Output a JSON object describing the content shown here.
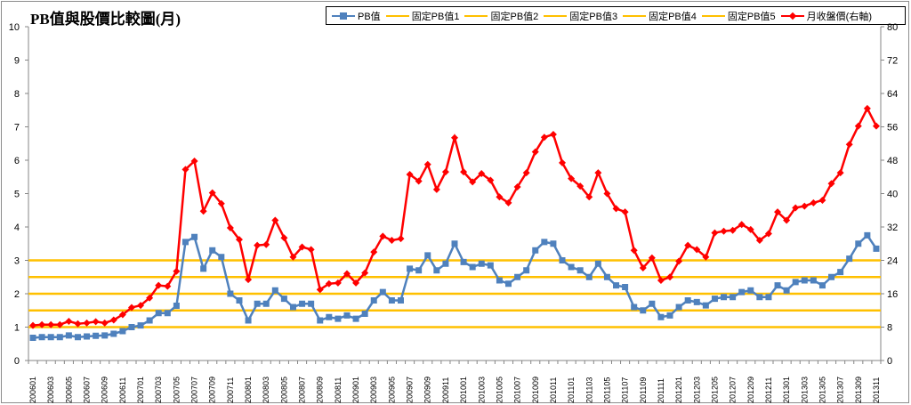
{
  "chart_data": {
    "type": "line",
    "title": "PB值與股價比較圖(月)",
    "categories": [
      "200601",
      "200602",
      "200603",
      "200604",
      "200605",
      "200606",
      "200607",
      "200608",
      "200609",
      "200610",
      "200611",
      "200612",
      "200701",
      "200702",
      "200703",
      "200704",
      "200705",
      "200706",
      "200707",
      "200708",
      "200709",
      "200710",
      "200711",
      "200712",
      "200801",
      "200802",
      "200803",
      "200804",
      "200805",
      "200806",
      "200807",
      "200808",
      "200809",
      "200810",
      "200811",
      "200812",
      "200901",
      "200902",
      "200903",
      "200904",
      "200905",
      "200906",
      "200907",
      "200908",
      "200909",
      "200910",
      "200911",
      "200912",
      "201001",
      "201002",
      "201003",
      "201004",
      "201005",
      "201006",
      "201007",
      "201008",
      "201009",
      "201010",
      "201011",
      "201012",
      "201101",
      "201102",
      "201103",
      "201104",
      "201105",
      "201106",
      "201107",
      "201108",
      "201109",
      "201110",
      "201111",
      "201112",
      "201201",
      "201202",
      "201203",
      "201204",
      "201205",
      "201206",
      "201207",
      "201208",
      "201209",
      "201210",
      "201211",
      "201212",
      "201301",
      "201302",
      "201303",
      "201304",
      "201305",
      "201306",
      "201307",
      "201308",
      "201309",
      "201310",
      "201311"
    ],
    "tick_labels": [
      "200601",
      "200603",
      "200605",
      "200607",
      "200609",
      "200611",
      "200701",
      "200703",
      "200705",
      "200707",
      "200709",
      "200711",
      "200801",
      "200803",
      "200805",
      "200807",
      "200809",
      "200811",
      "200901",
      "200903",
      "200905",
      "200907",
      "200909",
      "200911",
      "201001",
      "201003",
      "201005",
      "201007",
      "201009",
      "201011",
      "201101",
      "201103",
      "201105",
      "201107",
      "201109",
      "201111",
      "201201",
      "201203",
      "201205",
      "201207",
      "201209",
      "201211",
      "201301",
      "201303",
      "201305",
      "201307",
      "201309",
      "201311"
    ],
    "left_axis": {
      "ylim": [
        0,
        10
      ],
      "ticks": [
        "0",
        "1",
        "2",
        "3",
        "4",
        "5",
        "6",
        "7",
        "8",
        "9",
        "10"
      ]
    },
    "right_axis": {
      "ylim": [
        0,
        80
      ],
      "ticks": [
        "0",
        "8",
        "16",
        "24",
        "32",
        "40",
        "48",
        "56",
        "64",
        "72",
        "80"
      ]
    },
    "series": [
      {
        "name": "PB值",
        "axis": "left",
        "color": "#4f81bd",
        "marker": "square",
        "values": [
          0.68,
          0.7,
          0.7,
          0.7,
          0.75,
          0.7,
          0.72,
          0.74,
          0.75,
          0.8,
          0.88,
          1.0,
          1.05,
          1.2,
          1.42,
          1.42,
          1.64,
          3.55,
          3.7,
          2.75,
          3.3,
          3.1,
          2.0,
          1.8,
          1.2,
          1.7,
          1.7,
          2.1,
          1.85,
          1.6,
          1.7,
          1.7,
          1.2,
          1.3,
          1.25,
          1.35,
          1.25,
          1.4,
          1.8,
          2.05,
          1.8,
          1.8,
          2.75,
          2.7,
          3.15,
          2.7,
          2.9,
          3.5,
          2.95,
          2.8,
          2.9,
          2.85,
          2.4,
          2.3,
          2.5,
          2.7,
          3.3,
          3.55,
          3.5,
          3.0,
          2.8,
          2.7,
          2.5,
          2.9,
          2.5,
          2.25,
          2.2,
          1.6,
          1.5,
          1.7,
          1.3,
          1.35,
          1.6,
          1.8,
          1.75,
          1.65,
          1.85,
          1.9,
          1.9,
          2.05,
          2.1,
          1.9,
          1.9,
          2.25,
          2.1,
          2.35,
          2.4,
          2.4,
          2.25,
          2.5,
          2.65,
          3.05,
          3.5,
          3.75,
          3.35
        ]
      },
      {
        "name": "固定PB值1",
        "axis": "left",
        "color": "#ffc000",
        "constant": 1.0
      },
      {
        "name": "固定PB值2",
        "axis": "left",
        "color": "#ffc000",
        "constant": 1.5
      },
      {
        "name": "固定PB值3",
        "axis": "left",
        "color": "#ffc000",
        "constant": 2.0
      },
      {
        "name": "固定PB值4",
        "axis": "left",
        "color": "#ffc000",
        "constant": 2.5
      },
      {
        "name": "固定PB值5",
        "axis": "left",
        "color": "#ffc000",
        "constant": 3.0
      },
      {
        "name": "月收盤價(右軸)",
        "axis": "right",
        "color": "#ff0000",
        "marker": "diamond",
        "values": [
          8.4,
          8.6,
          8.6,
          8.6,
          9.4,
          8.8,
          9.0,
          9.3,
          9.0,
          9.7,
          11.0,
          12.7,
          13.2,
          15.0,
          18.0,
          17.8,
          21.4,
          45.8,
          47.8,
          35.8,
          40.2,
          37.6,
          31.8,
          29.0,
          19.4,
          27.6,
          27.8,
          33.6,
          29.4,
          24.8,
          27.2,
          26.6,
          17.0,
          18.4,
          18.6,
          20.8,
          18.6,
          21.0,
          26.0,
          29.8,
          28.8,
          29.2,
          44.6,
          43.0,
          47.0,
          41.0,
          45.2,
          53.4,
          45.2,
          42.8,
          44.8,
          43.2,
          39.2,
          37.8,
          41.6,
          45.0,
          50.0,
          53.5,
          54.2,
          47.4,
          43.6,
          41.8,
          39.2,
          45.0,
          40.0,
          36.4,
          35.6,
          26.4,
          22.2,
          24.6,
          19.2,
          20.0,
          23.8,
          27.6,
          26.6,
          24.8,
          30.6,
          31.0,
          31.2,
          32.6,
          31.4,
          28.8,
          30.4,
          35.6,
          33.6,
          36.6,
          37.0,
          37.8,
          38.4,
          42.4,
          45.0,
          51.8,
          56.2,
          60.4,
          56.2
        ]
      }
    ],
    "grid": false,
    "legend": "top-right"
  },
  "colors": {
    "pb": "#4f81bd",
    "fixed": "#ffc000",
    "price": "#ff0000",
    "axis": "#868686"
  }
}
